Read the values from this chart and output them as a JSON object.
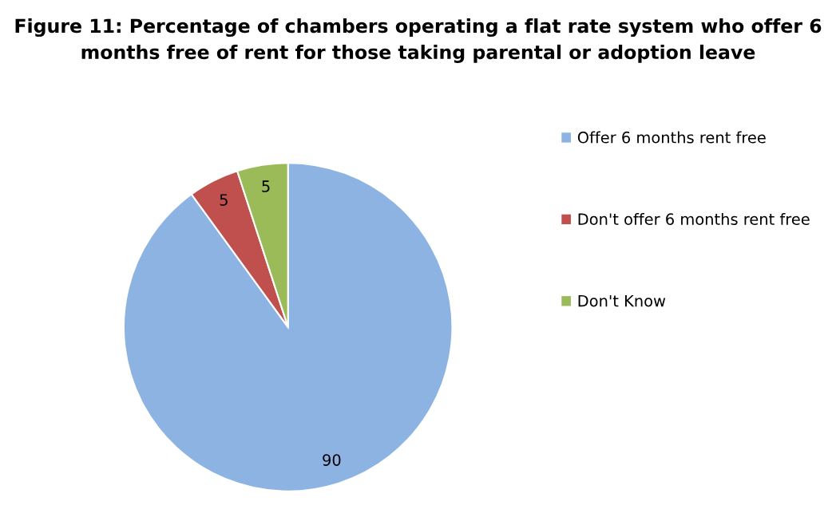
{
  "chart_data": {
    "type": "pie",
    "title": "Figure 11: Percentage of chambers operating a flat rate system who offer 6 months free of rent for those taking parental or adoption leave",
    "categories": [
      "Offer 6 months rent free",
      "Don't offer 6 months rent free",
      "Don't Know"
    ],
    "values": [
      90,
      5,
      5
    ],
    "colors": [
      "#8db3e2",
      "#c0504d",
      "#9bbb59"
    ],
    "data_labels": true,
    "legend": "right"
  }
}
